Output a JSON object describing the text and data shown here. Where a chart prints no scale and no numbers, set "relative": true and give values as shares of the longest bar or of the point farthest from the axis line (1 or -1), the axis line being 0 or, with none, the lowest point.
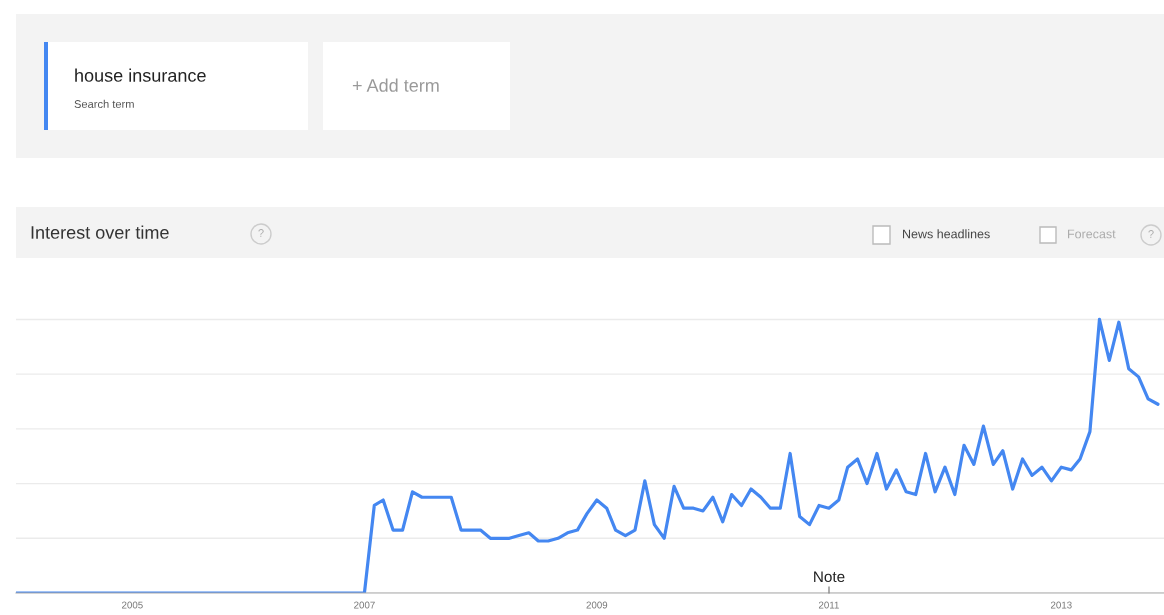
{
  "chart_data": {
    "type": "line",
    "title": "Interest over time",
    "relative": true,
    "grid": "y",
    "tick_labels": "x",
    "legend": "top left",
    "x": [
      "2004-01",
      "2004-02",
      "2004-03",
      "2004-04",
      "2004-05",
      "2004-06",
      "2004-07",
      "2004-08",
      "2004-09",
      "2004-10",
      "2004-11",
      "2004-12",
      "2005-01",
      "2005-02",
      "2005-03",
      "2005-04",
      "2005-05",
      "2005-06",
      "2005-07",
      "2005-08",
      "2005-09",
      "2005-10",
      "2005-11",
      "2005-12",
      "2006-01",
      "2006-02",
      "2006-03",
      "2006-04",
      "2006-05",
      "2006-06",
      "2006-07",
      "2006-08",
      "2006-09",
      "2006-10",
      "2006-11",
      "2006-12",
      "2007-01",
      "2007-02",
      "2007-03",
      "2007-04",
      "2007-05",
      "2007-06",
      "2007-07",
      "2007-08",
      "2007-09",
      "2007-10",
      "2007-11",
      "2007-12",
      "2008-01",
      "2008-02",
      "2008-03",
      "2008-04",
      "2008-05",
      "2008-06",
      "2008-07",
      "2008-08",
      "2008-09",
      "2008-10",
      "2008-11",
      "2008-12",
      "2009-01",
      "2009-02",
      "2009-03",
      "2009-04",
      "2009-05",
      "2009-06",
      "2009-07",
      "2009-08",
      "2009-09",
      "2009-10",
      "2009-11",
      "2009-12",
      "2010-01",
      "2010-02",
      "2010-03",
      "2010-04",
      "2010-05",
      "2010-06",
      "2010-07",
      "2010-08",
      "2010-09",
      "2010-10",
      "2010-11",
      "2010-12",
      "2011-01",
      "2011-02",
      "2011-03",
      "2011-04",
      "2011-05",
      "2011-06",
      "2011-07",
      "2011-08",
      "2011-09",
      "2011-10",
      "2011-11",
      "2011-12",
      "2012-01",
      "2012-02",
      "2012-03",
      "2012-04",
      "2012-05",
      "2012-06",
      "2012-07",
      "2012-08",
      "2012-09",
      "2012-10",
      "2012-11",
      "2012-12",
      "2013-01",
      "2013-02",
      "2013-03",
      "2013-04",
      "2013-05",
      "2013-06",
      "2013-07",
      "2013-08",
      "2013-09",
      "2013-10",
      "2013-11"
    ],
    "series": [
      {
        "name": "house insurance",
        "color": "#4487f1",
        "values": [
          0,
          0,
          0,
          0,
          0,
          0,
          0,
          0,
          0,
          0,
          0,
          0,
          0,
          0,
          0,
          0,
          0,
          0,
          0,
          0,
          0,
          0,
          0,
          0,
          0,
          0,
          0,
          0,
          0,
          0,
          0,
          0,
          0,
          0,
          0,
          0,
          0,
          0.32,
          0.34,
          0.23,
          0.23,
          0.37,
          0.35,
          0.35,
          0.35,
          0.35,
          0.23,
          0.23,
          0.23,
          0.2,
          0.2,
          0.2,
          0.21,
          0.22,
          0.19,
          0.19,
          0.2,
          0.22,
          0.23,
          0.29,
          0.34,
          0.31,
          0.23,
          0.21,
          0.23,
          0.41,
          0.25,
          0.2,
          0.39,
          0.31,
          0.31,
          0.3,
          0.35,
          0.26,
          0.36,
          0.32,
          0.38,
          0.35,
          0.31,
          0.31,
          0.51,
          0.28,
          0.25,
          0.32,
          0.31,
          0.34,
          0.46,
          0.49,
          0.4,
          0.51,
          0.38,
          0.45,
          0.37,
          0.36,
          0.51,
          0.37,
          0.46,
          0.36,
          0.54,
          0.47,
          0.61,
          0.47,
          0.52,
          0.38,
          0.49,
          0.43,
          0.46,
          0.41,
          0.46,
          0.45,
          0.49,
          0.59,
          1.0,
          0.85,
          0.99,
          0.82,
          0.79,
          0.71,
          0.69
        ]
      }
    ],
    "xlim": [
      "2004-01",
      "2013-11-20"
    ],
    "xticks": [
      "2005",
      "2007",
      "2009",
      "2011",
      "2013"
    ],
    "annotations": [
      "Search term",
      "+ Add term",
      "?",
      "News headlines",
      "Forecast",
      "?",
      "Note"
    ]
  }
}
